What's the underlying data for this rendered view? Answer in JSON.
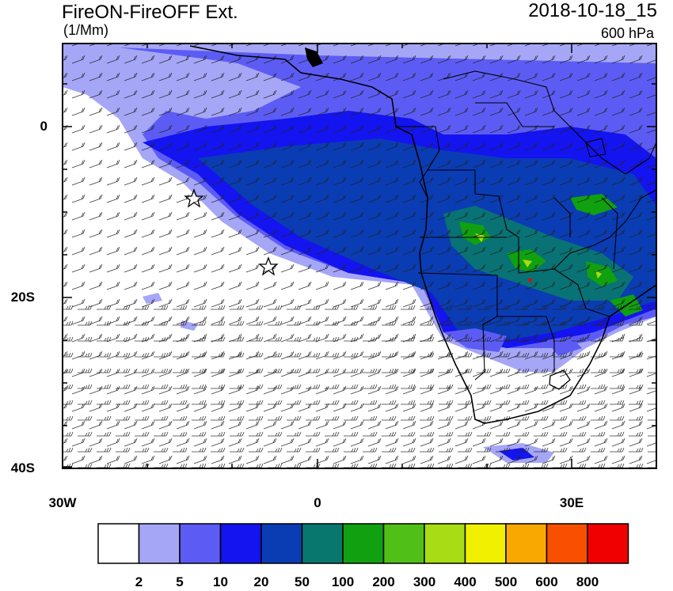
{
  "header": {
    "title": "FireON-FireOFF Ext.",
    "units": "(1/Mm)",
    "datetime": "2018-10-18_15",
    "level": "600 hPa"
  },
  "axes": {
    "y_ticks": [
      "0",
      "20S",
      "40S"
    ],
    "x_ticks": [
      "30W",
      "0",
      "30E"
    ]
  },
  "colorbar": {
    "levels": [
      "2",
      "5",
      "10",
      "20",
      "50",
      "100",
      "200",
      "300",
      "400",
      "500",
      "600",
      "800"
    ],
    "colors": [
      "#ffffff",
      "#a6a6f7",
      "#5c5cf5",
      "#1414f0",
      "#0a3cb4",
      "#08786e",
      "#10a010",
      "#50c018",
      "#a8dc14",
      "#f0f000",
      "#f8a800",
      "#f85000",
      "#f00000"
    ]
  },
  "map": {
    "lon_range": [
      -30,
      40
    ],
    "lat_range": [
      -40,
      10
    ],
    "markers": [
      "star",
      "star"
    ],
    "wind_barbs": true
  }
}
